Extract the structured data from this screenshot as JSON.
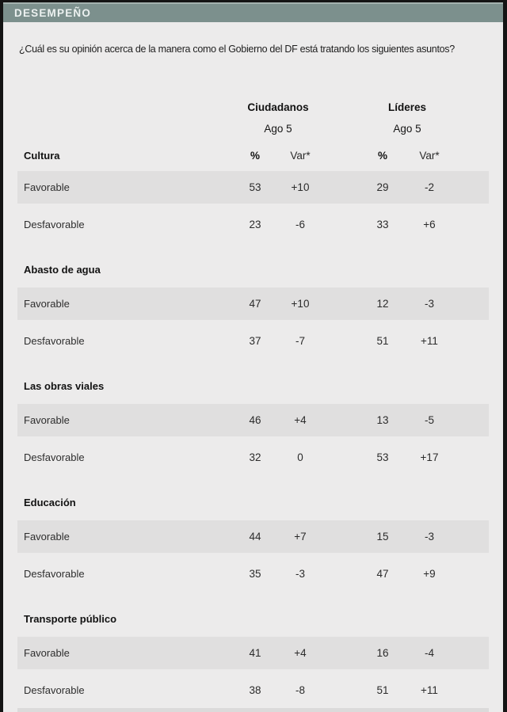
{
  "banner": {
    "title": "DESEMPEÑO"
  },
  "question": "¿Cuál es su opinión acerca de la manera como el Gobierno del DF está tratando los siguientes asuntos?",
  "table": {
    "groups": [
      {
        "name": "Ciudadanos",
        "date": "Ago 5"
      },
      {
        "name": "Líderes",
        "date": "Ago 5"
      }
    ],
    "col_headers": {
      "pct": "%",
      "var": "Var*"
    },
    "sections": [
      {
        "title": "Cultura",
        "rows": [
          {
            "label": "Favorable",
            "values": [
              "53",
              "+10",
              "29",
              "-2"
            ]
          },
          {
            "label": "Desfavorable",
            "values": [
              "23",
              "-6",
              "33",
              "+6"
            ]
          }
        ]
      },
      {
        "title": "Abasto de agua",
        "rows": [
          {
            "label": "Favorable",
            "values": [
              "47",
              "+10",
              "12",
              "-3"
            ]
          },
          {
            "label": "Desfavorable",
            "values": [
              "37",
              "-7",
              "51",
              "+11"
            ]
          }
        ]
      },
      {
        "title": "Las obras viales",
        "rows": [
          {
            "label": "Favorable",
            "values": [
              "46",
              "+4",
              "13",
              "-5"
            ]
          },
          {
            "label": "Desfavorable",
            "values": [
              "32",
              "0",
              "53",
              "+17"
            ]
          }
        ]
      },
      {
        "title": "Educación",
        "rows": [
          {
            "label": "Favorable",
            "values": [
              "44",
              "+7",
              "15",
              "-3"
            ]
          },
          {
            "label": "Desfavorable",
            "values": [
              "35",
              "-3",
              "47",
              "+9"
            ]
          }
        ]
      },
      {
        "title": "Transporte público",
        "rows": [
          {
            "label": "Favorable",
            "values": [
              "41",
              "+4",
              "16",
              "-4"
            ]
          },
          {
            "label": "Desfavorable",
            "values": [
              "38",
              "-8",
              "51",
              "+11"
            ]
          }
        ]
      }
    ]
  },
  "colors": {
    "banner_bg": "#7C908D",
    "banner_highlight": "#A3B1AE",
    "page_bg": "#ECEBEB",
    "stripe_bg": "#E0DFDF",
    "frame": "#141414"
  },
  "chart_data": {
    "type": "table",
    "title": "DESEMPEÑO",
    "subtitle": "¿Cuál es su opinión acerca de la manera como el Gobierno del DF está tratando los siguientes asuntos?",
    "column_groups": [
      "Ciudadanos Ago 5",
      "Líderes Ago 5"
    ],
    "columns": [
      "Ciudadanos %",
      "Ciudadanos Var*",
      "Líderes %",
      "Líderes Var*"
    ],
    "rows": [
      {
        "section": "Cultura",
        "label": "Favorable",
        "ciudadanos_pct": 53,
        "ciudadanos_var": 10,
        "lideres_pct": 29,
        "lideres_var": -2
      },
      {
        "section": "Cultura",
        "label": "Desfavorable",
        "ciudadanos_pct": 23,
        "ciudadanos_var": -6,
        "lideres_pct": 33,
        "lideres_var": 6
      },
      {
        "section": "Abasto de agua",
        "label": "Favorable",
        "ciudadanos_pct": 47,
        "ciudadanos_var": 10,
        "lideres_pct": 12,
        "lideres_var": -3
      },
      {
        "section": "Abasto de agua",
        "label": "Desfavorable",
        "ciudadanos_pct": 37,
        "ciudadanos_var": -7,
        "lideres_pct": 51,
        "lideres_var": 11
      },
      {
        "section": "Las obras viales",
        "label": "Favorable",
        "ciudadanos_pct": 46,
        "ciudadanos_var": 4,
        "lideres_pct": 13,
        "lideres_var": -5
      },
      {
        "section": "Las obras viales",
        "label": "Desfavorable",
        "ciudadanos_pct": 32,
        "ciudadanos_var": 0,
        "lideres_pct": 53,
        "lideres_var": 17
      },
      {
        "section": "Educación",
        "label": "Favorable",
        "ciudadanos_pct": 44,
        "ciudadanos_var": 7,
        "lideres_pct": 15,
        "lideres_var": -3
      },
      {
        "section": "Educación",
        "label": "Desfavorable",
        "ciudadanos_pct": 35,
        "ciudadanos_var": -3,
        "lideres_pct": 47,
        "lideres_var": 9
      },
      {
        "section": "Transporte público",
        "label": "Favorable",
        "ciudadanos_pct": 41,
        "ciudadanos_var": 4,
        "lideres_pct": 16,
        "lideres_var": -4
      },
      {
        "section": "Transporte público",
        "label": "Desfavorable",
        "ciudadanos_pct": 38,
        "ciudadanos_var": -8,
        "lideres_pct": 51,
        "lideres_var": 11
      }
    ]
  }
}
